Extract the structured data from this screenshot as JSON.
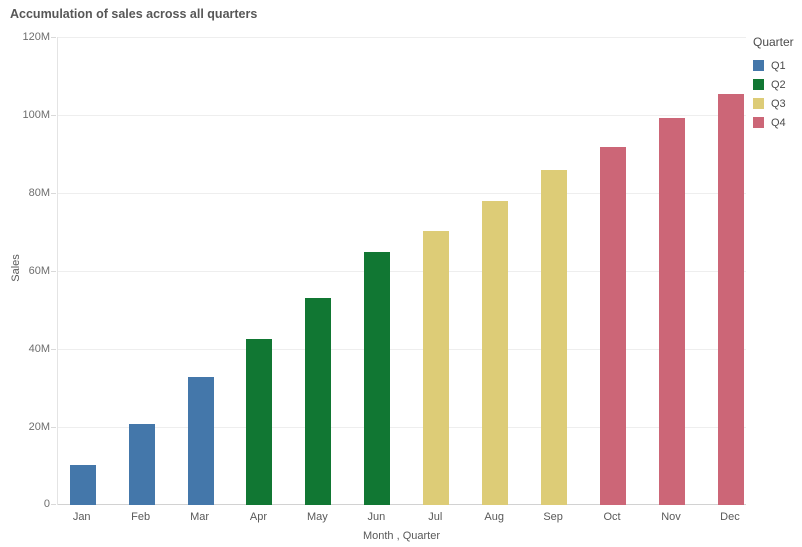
{
  "title": "Accumulation of sales across all quarters",
  "legend": {
    "title": "Quarter",
    "items": [
      {
        "label": "Q1",
        "color": "#4477aa"
      },
      {
        "label": "Q2",
        "color": "#117733"
      },
      {
        "label": "Q3",
        "color": "#ddcc77"
      },
      {
        "label": "Q4",
        "color": "#cc6677"
      }
    ]
  },
  "chart_data": {
    "type": "bar",
    "title": "Accumulation of sales across all quarters",
    "xlabel": "Month , Quarter",
    "ylabel": "Sales",
    "unit": "M",
    "ylim_millions": [
      0,
      120
    ],
    "yticks_millions": [
      0,
      20,
      40,
      60,
      80,
      100,
      120
    ],
    "y_tick_labels": [
      "0",
      "20M",
      "40M",
      "60M",
      "80M",
      "100M",
      "120M"
    ],
    "grid": true,
    "legend_position": "top-right",
    "categories": [
      "Jan",
      "Feb",
      "Mar",
      "Apr",
      "May",
      "Jun",
      "Jul",
      "Aug",
      "Sep",
      "Oct",
      "Nov",
      "Dec"
    ],
    "quarter_of_month": [
      "Q1",
      "Q1",
      "Q1",
      "Q2",
      "Q2",
      "Q2",
      "Q3",
      "Q3",
      "Q3",
      "Q4",
      "Q4",
      "Q4"
    ],
    "values_millions": [
      10.2,
      20.8,
      32.9,
      42.7,
      53.0,
      65.0,
      70.3,
      78.0,
      85.8,
      91.7,
      99.3,
      105.5
    ]
  }
}
